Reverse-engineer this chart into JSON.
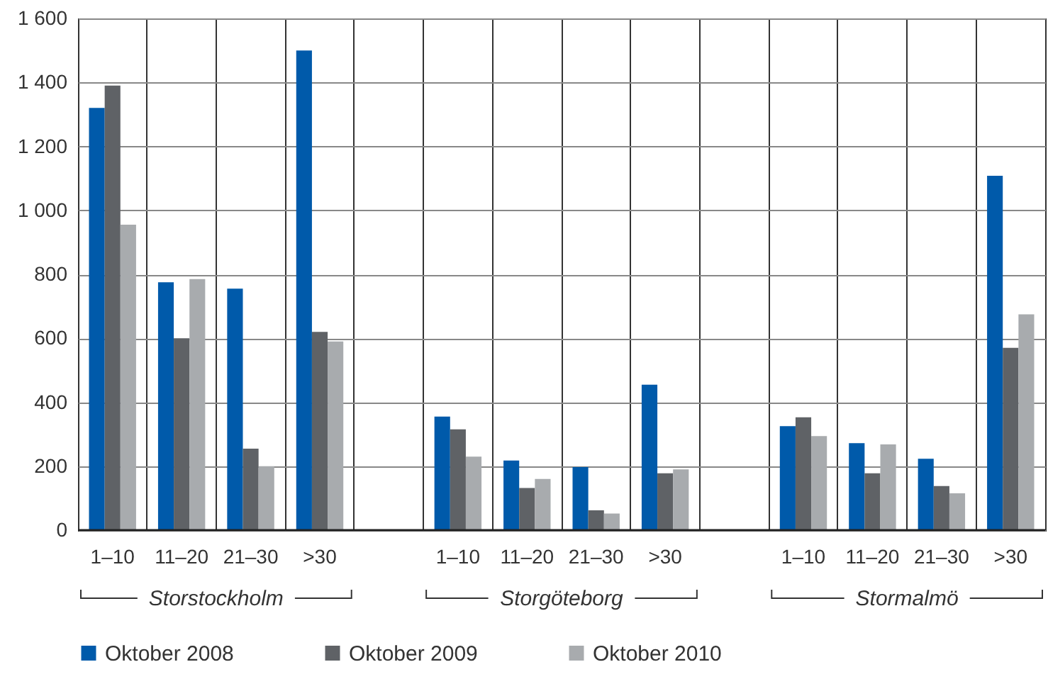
{
  "chart_data": {
    "type": "bar",
    "categories": [
      "1–10",
      "11–20",
      "21–30",
      ">30",
      null,
      "1–10",
      "11–20",
      "21–30",
      ">30",
      null,
      "1–10",
      "11–20",
      "21–30",
      ">30"
    ],
    "series": [
      {
        "name": "Oktober 2008",
        "color": "#005aaa",
        "values": [
          1320,
          775,
          755,
          1500,
          null,
          355,
          218,
          197,
          455,
          null,
          325,
          272,
          223,
          1108
        ]
      },
      {
        "name": "Oktober 2009",
        "color": "#5f6266",
        "values": [
          1390,
          600,
          255,
          620,
          null,
          315,
          132,
          62,
          178,
          null,
          353,
          178,
          138,
          570
        ]
      },
      {
        "name": "Oktober 2010",
        "color": "#a8abae",
        "values": [
          955,
          785,
          200,
          590,
          null,
          230,
          160,
          52,
          190,
          null,
          294,
          268,
          115,
          675
        ]
      }
    ],
    "ylim": [
      0,
      1600
    ],
    "yticks": [
      0,
      200,
      400,
      600,
      800,
      {
        "value": 1000,
        "label": "1 000"
      },
      {
        "value": 1200,
        "label": "1 200"
      },
      {
        "value": 1400,
        "label": "1 400"
      },
      {
        "value": 1600,
        "label": "1 600"
      }
    ],
    "annotations": [
      "Storstockholm",
      "Storgöteborg",
      "Stormalmö"
    ],
    "grid": true,
    "legend": "bottom left"
  }
}
